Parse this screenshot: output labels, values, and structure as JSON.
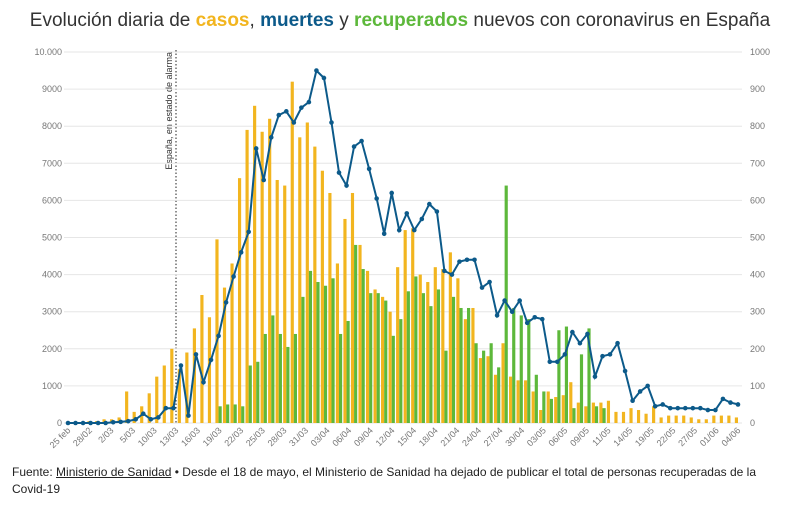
{
  "chart_data": {
    "type": "bar-line",
    "title": [
      "Evolución diaria de ",
      "casos",
      ", ",
      "muertes",
      " y ",
      "recuperados",
      " nuevos con coronavirus en España"
    ],
    "annotation": "España, en estado de alarma",
    "footer": [
      "Fuente: ",
      "Ministerio de Sanidad",
      " • Desde el 18 de mayo, el Ministerio de Sanidad ha dejado de publicar el total de personas recuperadas de la Covid-19"
    ],
    "x_labels": [
      "25 feb",
      "28/02",
      "2/03",
      "5/03",
      "10/03",
      "13/03",
      "16/03",
      "19/03",
      "22/03",
      "25/03",
      "28/03",
      "31/03",
      "03/04",
      "06/04",
      "09/04",
      "12/04",
      "15/04",
      "18/04",
      "21/04",
      "24/04",
      "27/04",
      "30/04",
      "03/05",
      "06/05",
      "09/05",
      "11/05",
      "14/05",
      "19/05",
      "22/05",
      "27/05",
      "01/06",
      "04/06"
    ],
    "ylim": [
      0,
      10000
    ],
    "yticks": [
      0,
      1000,
      2000,
      3000,
      4000,
      5000,
      6000,
      7000,
      8000,
      9000,
      {
        "value": 10000,
        "label": "10.000"
      }
    ],
    "y2lim": [
      0,
      1000
    ],
    "y2ticks": [
      0,
      100,
      200,
      300,
      400,
      500,
      600,
      700,
      800,
      900,
      1000
    ],
    "grid": true,
    "series": [
      {
        "name": "casos",
        "color": "#f2b51f",
        "values": [
          0,
          0,
          0,
          50,
          50,
          100,
          100,
          150,
          850,
          300,
          450,
          800,
          1250,
          1550,
          2000,
          1450,
          1900,
          2550,
          3450,
          2850,
          4950,
          3650,
          4300,
          6600,
          7900,
          8550,
          7850,
          8200,
          6550,
          6400,
          9200,
          7700,
          8100,
          7450,
          6800,
          6200,
          4300,
          5500,
          6200,
          4800,
          4100,
          3600,
          3400,
          3000,
          4200,
          5200,
          5250,
          4000,
          3800,
          4200,
          4150,
          4600,
          3900,
          2800,
          3100,
          1750,
          1800,
          1300,
          2150,
          1250,
          1150,
          1150,
          850,
          350,
          850,
          700,
          750,
          1100,
          550,
          450,
          550,
          550,
          600,
          300,
          300,
          400,
          350,
          250,
          450,
          150,
          200,
          200,
          200,
          150,
          100,
          100,
          200,
          200,
          200,
          150
        ]
      },
      {
        "name": "recuperados",
        "color": "#5db83b",
        "values": [
          null,
          null,
          null,
          null,
          null,
          null,
          null,
          null,
          null,
          null,
          null,
          null,
          null,
          null,
          null,
          null,
          null,
          null,
          null,
          null,
          450,
          500,
          500,
          450,
          1550,
          1650,
          2400,
          2900,
          2400,
          2050,
          2400,
          3400,
          4100,
          3800,
          3700,
          3900,
          2400,
          2750,
          4800,
          4150,
          3500,
          3500,
          3300,
          2350,
          2800,
          3550,
          3950,
          3500,
          3150,
          3600,
          1950,
          3400,
          3100,
          3100,
          2150,
          1950,
          2150,
          1500,
          6400,
          3100,
          2900,
          2800,
          1300,
          850,
          650,
          2500,
          2600,
          400,
          1850,
          2550,
          450,
          400,
          null,
          null,
          null,
          null,
          null,
          null,
          null,
          null,
          null,
          null,
          null,
          null,
          null,
          null,
          null,
          null,
          null,
          null
        ]
      },
      {
        "name": "muertes",
        "color": "#0c5a8a",
        "axis": "y2",
        "values": [
          0,
          0,
          0,
          0,
          0,
          0,
          2,
          3,
          5,
          10,
          25,
          10,
          15,
          40,
          40,
          155,
          20,
          185,
          110,
          170,
          235,
          325,
          395,
          460,
          515,
          740,
          655,
          770,
          830,
          840,
          810,
          850,
          865,
          950,
          930,
          810,
          675,
          640,
          745,
          760,
          685,
          605,
          510,
          620,
          520,
          565,
          520,
          550,
          590,
          570,
          410,
          400,
          435,
          440,
          440,
          365,
          380,
          290,
          330,
          300,
          330,
          270,
          285,
          280,
          165,
          165,
          185,
          245,
          215,
          240,
          125,
          180,
          185,
          215,
          140,
          60,
          85,
          100,
          45,
          50,
          40,
          40,
          40,
          40,
          40,
          35,
          35,
          65,
          55,
          50
        ]
      }
    ]
  }
}
